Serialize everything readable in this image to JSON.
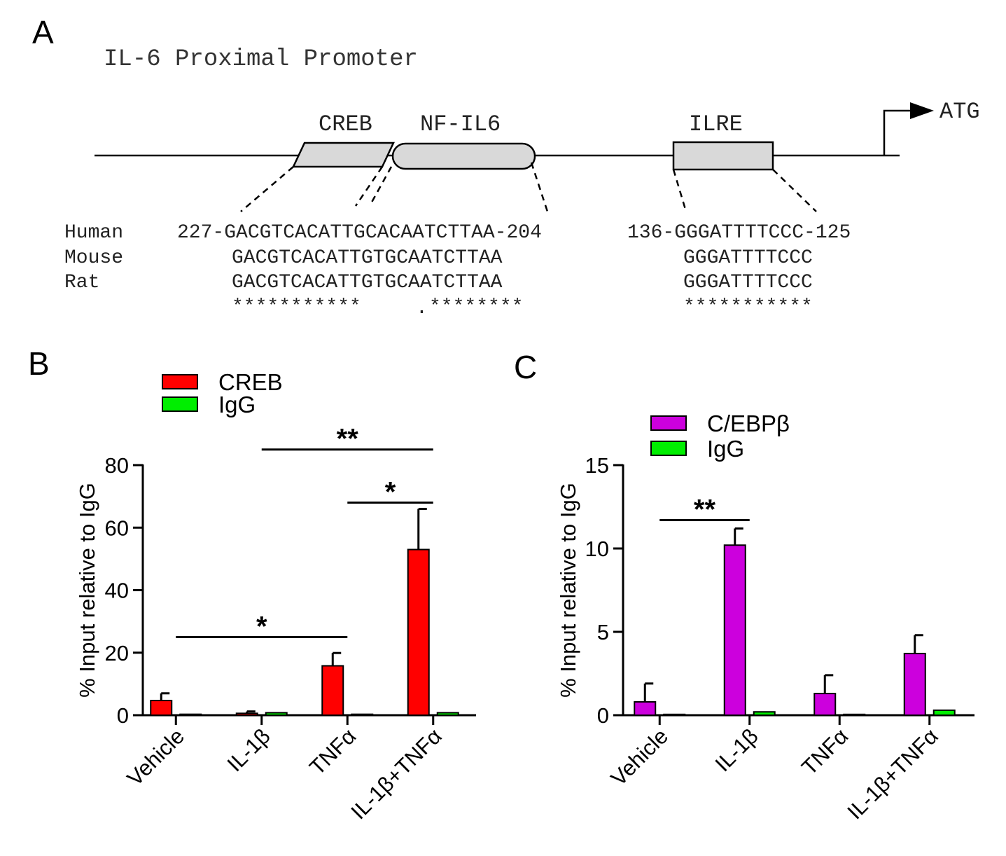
{
  "panel_a": {
    "letter": "A",
    "title": "IL-6 Proximal Promoter",
    "elements": [
      "CREB",
      "NF-IL6",
      "ILRE"
    ],
    "start_codon": "ATG",
    "species": [
      "Human",
      "Mouse",
      "Rat"
    ],
    "human_left": "227-GACGTCACATTGCACAATCTTAA-204",
    "human_right": "136-GGGATTTTCCC-125",
    "mouse_left": "GACGTCACATTGTGCAATCTTAA",
    "mouse_right": "GGGATTTTCCC",
    "rat_left": "GACGTCACATTGTGCAATCTTAA",
    "rat_right": "GGGATTTTCCC",
    "cons_left_a": "***********",
    "cons_left_b": "********",
    "cons_right": "***********",
    "cons_dot": "."
  },
  "chart_data": [
    {
      "panel": "B",
      "type": "bar",
      "ylabel": "% Input relative to IgG",
      "ylim": [
        0,
        80
      ],
      "yticks": [
        "0",
        "20",
        "40",
        "60",
        "80"
      ],
      "categories": [
        "Vehicle",
        "IL-1β",
        "TNFα",
        "IL-1β+TNFα"
      ],
      "series": [
        {
          "name": "CREB",
          "color": "#ff0000",
          "values": [
            4.7,
            0.6,
            15.8,
            53
          ],
          "errors": [
            2.3,
            0.6,
            4.1,
            13
          ]
        },
        {
          "name": "IgG",
          "color": "#00ee00",
          "values": [
            0.3,
            0.8,
            0.3,
            0.8
          ],
          "errors": [
            0,
            0,
            0,
            0
          ]
        }
      ],
      "significance": [
        {
          "from": 0,
          "to": 2,
          "label": "*",
          "y": 25
        },
        {
          "from": 1,
          "to": 3,
          "label": "**",
          "y": 85
        },
        {
          "from": 2,
          "to": 3,
          "label": "*",
          "y": 68
        }
      ],
      "legend_position": "top-left"
    },
    {
      "panel": "C",
      "type": "bar",
      "ylabel": "% Input relative to IgG",
      "ylim": [
        0,
        15
      ],
      "yticks": [
        "0",
        "5",
        "10",
        "15"
      ],
      "categories": [
        "Vehicle",
        "IL-1β",
        "TNFα",
        "IL-1β+TNFα"
      ],
      "series": [
        {
          "name": "C/EBPβ",
          "color": "#cc00dd",
          "values": [
            0.8,
            10.2,
            1.3,
            3.7
          ],
          "errors": [
            1.1,
            1.0,
            1.1,
            1.1
          ]
        },
        {
          "name": "IgG",
          "color": "#00ee00",
          "values": [
            0.05,
            0.2,
            0.05,
            0.3
          ],
          "errors": [
            0,
            0,
            0,
            0
          ]
        }
      ],
      "significance": [
        {
          "from": 0,
          "to": 1,
          "label": "**",
          "y": 11.7
        }
      ],
      "legend_position": "top-left"
    }
  ]
}
